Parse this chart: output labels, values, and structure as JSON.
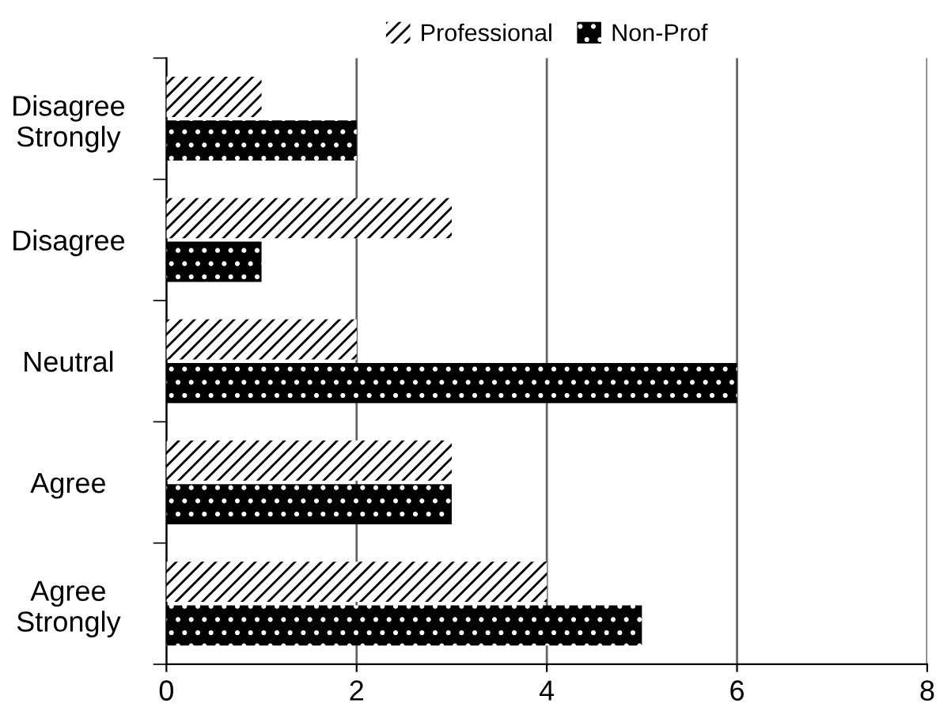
{
  "chart_data": {
    "type": "bar",
    "orientation": "horizontal",
    "categories": [
      "Disagree\nStrongly",
      "Disagree",
      "Neutral",
      "Agree",
      "Agree\nStrongly"
    ],
    "series": [
      {
        "name": "Professional",
        "color": "#000000",
        "values": [
          1,
          3,
          2,
          3,
          4
        ]
      },
      {
        "name": "Non-Prof",
        "color": "#000000",
        "values": [
          2,
          1,
          6,
          3,
          5
        ]
      }
    ],
    "xlim": [
      0,
      8
    ],
    "xticks": [
      0,
      2,
      4,
      6,
      8
    ],
    "grid": "x",
    "legend": "top"
  }
}
